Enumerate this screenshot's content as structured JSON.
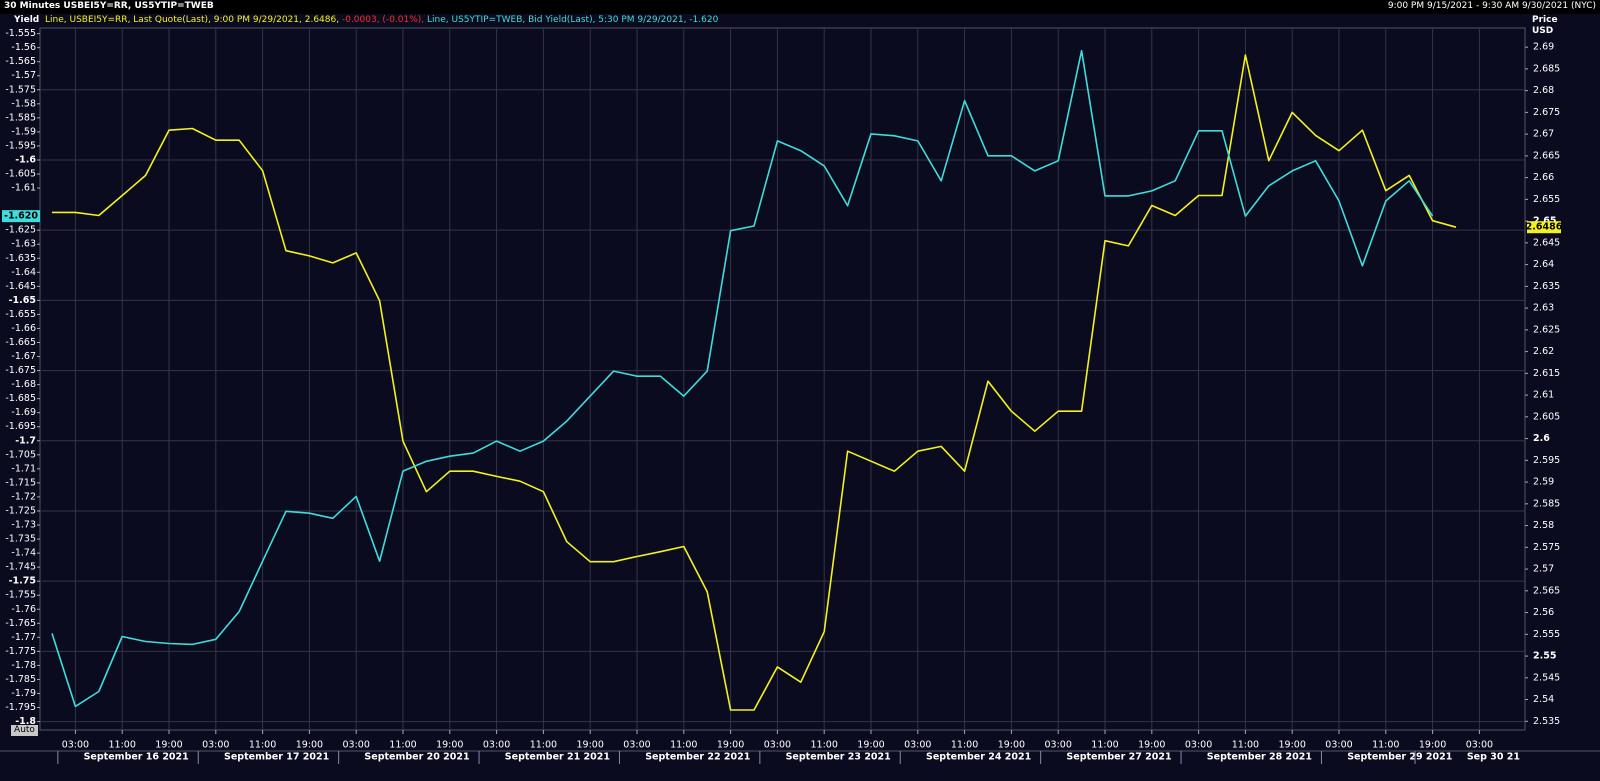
{
  "chart_data": {
    "type": "line",
    "title": "30 Minutes USBEI5Y=RR, US5YTIP=TWEB",
    "subtitle": "9:00 PM 9/15/2021 - 9:30 AM 9/30/2021 (NYC)",
    "ylabel": "Yield",
    "y2label": "Price USD",
    "button": "Auto",
    "grid": true,
    "categories": [
      null,
      "03:00",
      null,
      "11:00",
      null,
      "19:00",
      null,
      "03:00",
      null,
      "11:00",
      null,
      "19:00",
      null,
      "03:00",
      null,
      "11:00",
      null,
      "19:00",
      null,
      "03:00",
      null,
      "11:00",
      null,
      "19:00",
      null,
      "03:00",
      null,
      "11:00",
      null,
      "19:00",
      null,
      "03:00",
      null,
      "11:00",
      null,
      "19:00",
      null,
      "03:00",
      null,
      "11:00",
      null,
      "19:00",
      null,
      "03:00",
      null,
      "11:00",
      null,
      "19:00",
      null,
      "03:00",
      null,
      "11:00",
      null,
      "19:00",
      null,
      "03:00",
      null,
      "11:00",
      null,
      "19:00",
      null,
      "03:00",
      null
    ],
    "x_groups": [
      null,
      null,
      null,
      "September 16 2021",
      null,
      null,
      null,
      null,
      null,
      "September 17 2021",
      null,
      null,
      null,
      null,
      null,
      "September 20 2021",
      null,
      null,
      null,
      null,
      null,
      "September 21 2021",
      null,
      null,
      null,
      null,
      null,
      "September 22 2021",
      null,
      null,
      null,
      null,
      null,
      "September 23 2021",
      null,
      null,
      null,
      null,
      null,
      "September 24 2021",
      null,
      null,
      null,
      null,
      null,
      "September 27 2021",
      null,
      null,
      null,
      null,
      null,
      "September 28 2021",
      null,
      null,
      null,
      null,
      null,
      "September 29 2021",
      null,
      null,
      null,
      "Sep 30 21",
      null
    ],
    "ylim": [
      -1.803,
      -1.553
    ],
    "yticks": [
      -1.555,
      -1.56,
      -1.565,
      -1.57,
      -1.575,
      -1.58,
      -1.585,
      -1.59,
      -1.595,
      -1.6,
      -1.605,
      -1.61,
      -1.625,
      -1.63,
      -1.635,
      -1.64,
      -1.645,
      -1.65,
      -1.655,
      -1.66,
      -1.665,
      -1.67,
      -1.675,
      -1.68,
      -1.685,
      -1.69,
      -1.695,
      -1.7,
      -1.705,
      -1.71,
      -1.715,
      -1.72,
      -1.725,
      -1.73,
      -1.735,
      -1.74,
      -1.745,
      -1.75,
      -1.755,
      -1.76,
      -1.765,
      -1.77,
      -1.775,
      -1.78,
      -1.785,
      -1.79,
      -1.795,
      -1.8
    ],
    "y2lim": [
      2.533,
      2.6944
    ],
    "y2ticks": [
      2.69,
      2.685,
      2.68,
      2.675,
      2.67,
      2.665,
      2.66,
      2.655,
      2.65,
      2.645,
      2.64,
      2.635,
      2.63,
      2.625,
      2.62,
      2.615,
      2.61,
      2.605,
      2.6,
      2.595,
      2.59,
      2.585,
      2.58,
      2.575,
      2.57,
      2.565,
      2.56,
      2.555,
      2.55,
      2.545,
      2.54,
      2.535
    ],
    "series": [
      {
        "name": "Line, USBEI5Y=RR, Last Quote(Last), 9:00 PM 9/29/2021, 2.6486,",
        "change": "-0.0003, (-0.01%),",
        "change_color": "#ff2a2a",
        "color": "#f4f21c",
        "axis": "y2",
        "values": [
          2.652,
          2.652,
          2.6513,
          2.6559,
          2.6605,
          2.6709,
          2.6713,
          2.6686,
          2.6686,
          2.6616,
          2.6432,
          2.642,
          2.6404,
          2.6427,
          2.6317,
          2.5994,
          2.5878,
          2.5925,
          2.5925,
          2.5913,
          2.5902,
          2.5878,
          2.5763,
          2.5717,
          2.5717,
          2.5729,
          2.574,
          2.5752,
          2.5648,
          2.5376,
          2.5376,
          2.5475,
          2.544,
          2.5556,
          2.5971,
          2.5948,
          2.5925,
          2.5971,
          2.5982,
          2.5925,
          2.6132,
          2.6063,
          2.6017,
          2.6063,
          2.6063,
          2.6455,
          2.6443,
          2.6536,
          2.6513,
          2.6559,
          2.6559,
          2.6882,
          2.6639,
          2.675,
          2.6697,
          2.6662,
          2.6709,
          2.657,
          2.6605,
          2.6501,
          2.6486,
          null,
          null
        ]
      },
      {
        "name": "Line, US5YTIP=TWEB, Bid Yield(Last), 5:30 PM 9/29/2021, -1.620",
        "color": "#3fdcdc",
        "axis": "y",
        "values": [
          -1.7686,
          -1.7946,
          -1.7893,
          -1.7697,
          -1.7715,
          -1.7722,
          -1.7725,
          -1.7707,
          -1.7608,
          -1.7429,
          -1.7251,
          -1.7258,
          -1.7276,
          -1.7198,
          -1.7429,
          -1.7108,
          -1.7073,
          -1.7055,
          -1.7044,
          -1.7001,
          -1.7037,
          -1.7001,
          -1.693,
          -1.6841,
          -1.6752,
          -1.677,
          -1.677,
          -1.6841,
          -1.6752,
          -1.6252,
          -1.6235,
          -1.5932,
          -1.5967,
          -1.6021,
          -1.6163,
          -1.5907,
          -1.5914,
          -1.5932,
          -1.6074,
          -1.5789,
          -1.5985,
          -1.5985,
          -1.6039,
          -1.6003,
          -1.5611,
          -1.6128,
          -1.6128,
          -1.611,
          -1.6074,
          -1.5896,
          -1.5896,
          -1.62,
          -1.6092,
          -1.6039,
          -1.6003,
          -1.6146,
          -1.6377,
          -1.6146,
          -1.6074,
          -1.62,
          null,
          null,
          null
        ],
        "value_labels": [
          null,
          null,
          null,
          null,
          null,
          null,
          null,
          null,
          null,
          null,
          null,
          null,
          null,
          null,
          null,
          null,
          null,
          null,
          null,
          null,
          null,
          null,
          null,
          null,
          null,
          null,
          null,
          null,
          null,
          null,
          null,
          null,
          null,
          null,
          null,
          null,
          null,
          null,
          null,
          null,
          null,
          null,
          null,
          null,
          null,
          null,
          null,
          null,
          null,
          null,
          null,
          null,
          null,
          null,
          null,
          null,
          null,
          null,
          null,
          "-1.620",
          null,
          null,
          null
        ]
      }
    ]
  }
}
